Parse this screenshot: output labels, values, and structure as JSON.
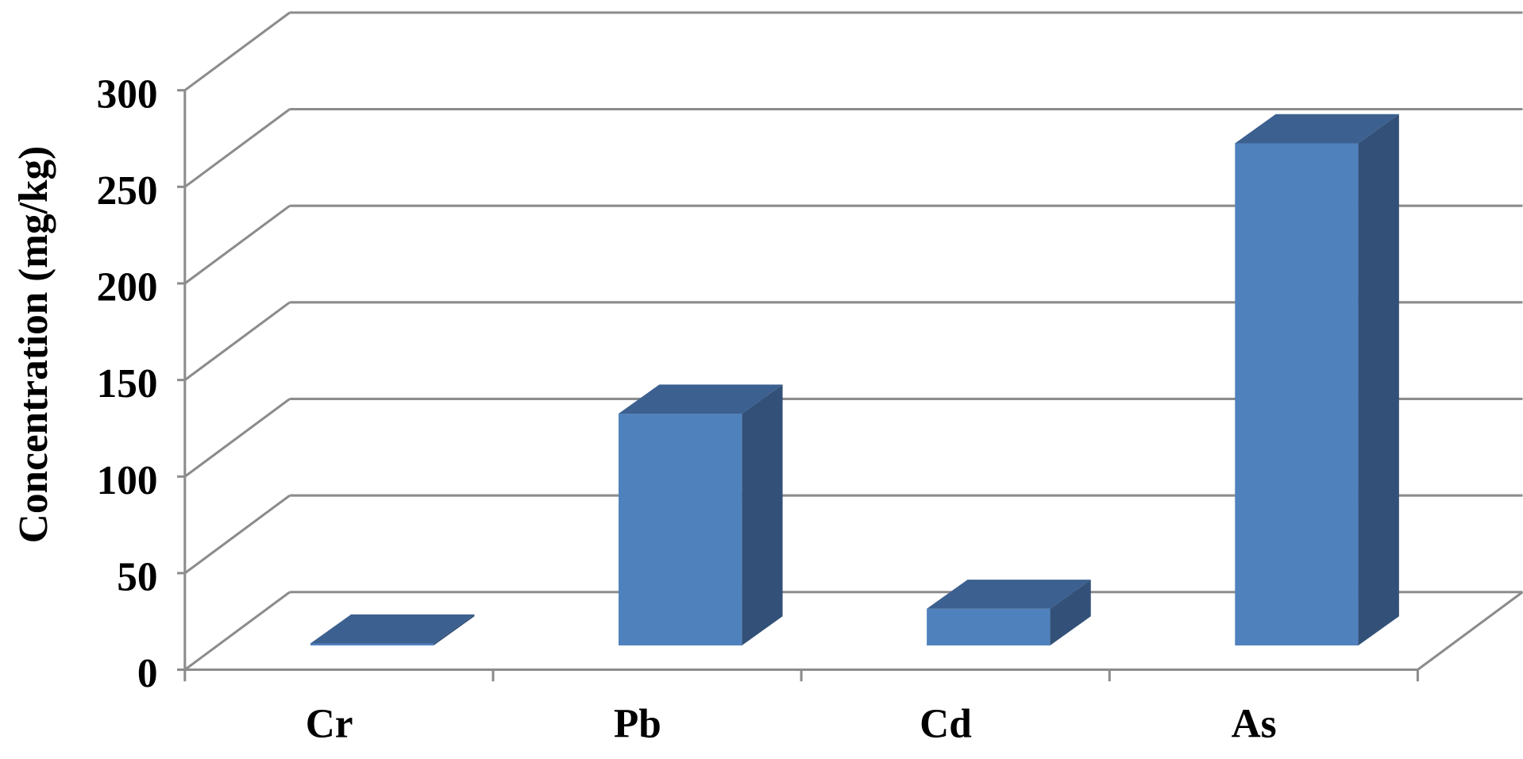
{
  "chart_data": {
    "type": "bar3d",
    "y_label": "Concentration (mg/kg)",
    "categories": [
      "Cr",
      "Pb",
      "Cd",
      "As"
    ],
    "values": [
      1,
      120,
      19,
      260
    ],
    "color": "#4f81bd",
    "ylim": [
      0,
      300
    ],
    "yticks": [
      0,
      50,
      100,
      150,
      200,
      250,
      300
    ],
    "grid": true
  }
}
